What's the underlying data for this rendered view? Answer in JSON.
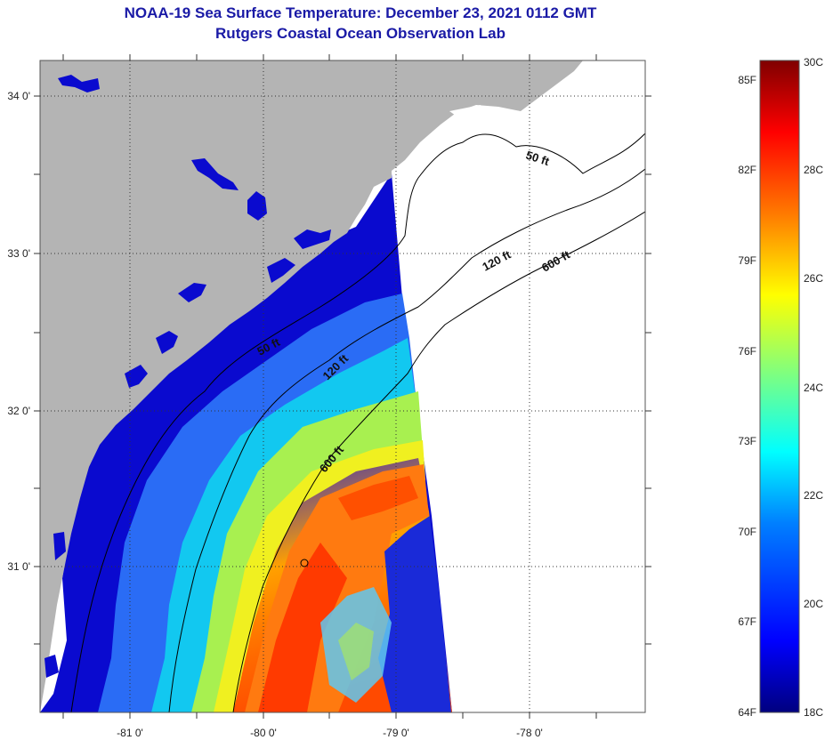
{
  "title": {
    "line1": "NOAA-19 Sea Surface Temperature:  December 23, 2021 0112 GMT",
    "line2": "Rutgers Coastal Ocean Observation Lab"
  },
  "map": {
    "lat_ticks": [
      "34 0'",
      "33 0'",
      "32 0'",
      "31 0'"
    ],
    "lon_ticks": [
      "-81 0'",
      "-80 0'",
      "-79 0'",
      "-78 0'"
    ],
    "contours": [
      "50 ft",
      "120 ft",
      "600 ft",
      "50 ft",
      "120 ft",
      "600 ft"
    ],
    "colors": {
      "land": "#b4b4b4",
      "no_data": "#ffffff"
    }
  },
  "colorbar": {
    "fahrenheit": [
      "85F",
      "82F",
      "79F",
      "76F",
      "73F",
      "70F",
      "67F",
      "64F"
    ],
    "celsius": [
      "30C",
      "28C",
      "26C",
      "24C",
      "22C",
      "20C",
      "18C"
    ],
    "stops": [
      "#00007f",
      "#0000ff",
      "#007fff",
      "#00ffff",
      "#7fff7f",
      "#ffff00",
      "#ff7f00",
      "#ff0000",
      "#7f0000"
    ]
  }
}
